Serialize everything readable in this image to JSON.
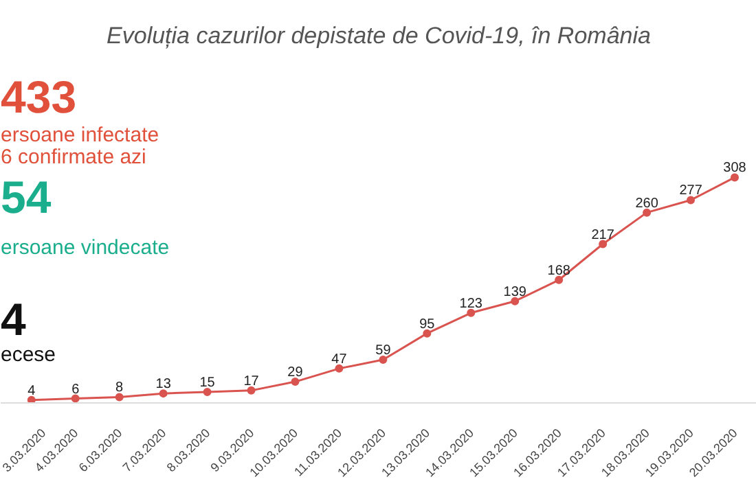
{
  "chart_data": {
    "type": "line",
    "title": "Evoluția cazurilor depistate de Covid-19, în România",
    "categories": [
      "3.03.2020",
      "4.03.2020",
      "6.03.2020",
      "7.03.2020",
      "8.03.2020",
      "9.03.2020",
      "10.03.2020",
      "11.03.2020",
      "12.03.2020",
      "13.03.2020",
      "14.03.2020",
      "15.03.2020",
      "16.03.2020",
      "17.03.2020",
      "18.03.2020",
      "19.03.2020",
      "20.03.2020"
    ],
    "series": [
      {
        "color": "#d9534f",
        "values": [
          4,
          6,
          8,
          13,
          15,
          17,
          29,
          47,
          59,
          95,
          123,
          139,
          168,
          217,
          260,
          277,
          308
        ]
      }
    ],
    "data_labels": true,
    "tick_labels": "x",
    "grid": false,
    "marker": "circle",
    "line_style": "solid",
    "annotations": [
      "433",
      "ersoane infectate",
      "6 confirmate azi",
      "54",
      "ersoane vindecate",
      "4",
      "ecese"
    ]
  }
}
